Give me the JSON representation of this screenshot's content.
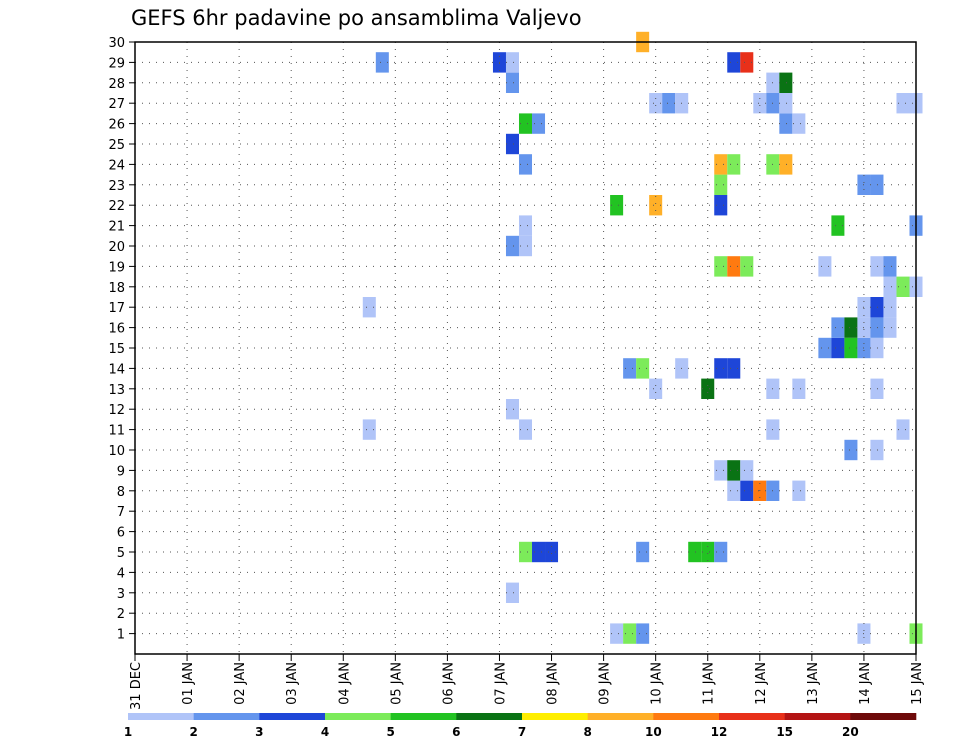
{
  "chart_data": {
    "type": "heatmap",
    "title": "GEFS 6hr padavine po ansamblima Valjevo",
    "y_ticks": [
      1,
      2,
      3,
      4,
      5,
      6,
      7,
      8,
      9,
      10,
      11,
      12,
      13,
      14,
      15,
      16,
      17,
      18,
      19,
      20,
      21,
      22,
      23,
      24,
      25,
      26,
      27,
      28,
      29,
      30
    ],
    "y_range": [
      0,
      30
    ],
    "x_ticks": [
      "31 DEC",
      "01 JAN",
      "02 JAN",
      "03 JAN",
      "04 JAN",
      "05 JAN",
      "06 JAN",
      "07 JAN",
      "08 JAN",
      "09 JAN",
      "10 JAN",
      "11 JAN",
      "12 JAN",
      "13 JAN",
      "14 JAN",
      "15 JAN"
    ],
    "x_range": [
      0,
      15
    ],
    "x_unit": "days from 31 DEC 00Z, 6-hour steps",
    "grid": true,
    "colorbar": {
      "labels": [
        "1",
        "2",
        "3",
        "4",
        "5",
        "6",
        "7",
        "8",
        "10",
        "12",
        "15",
        "20"
      ],
      "colors": [
        "#b0c4f8",
        "#6495ed",
        "#1e46d8",
        "#7ceb5a",
        "#22c322",
        "#0a7314",
        "#ffee00",
        "#ffb028",
        "#ff7a10",
        "#e8301a",
        "#b41414",
        "#6e0a0a"
      ]
    },
    "cells": [
      {
        "x": 9.25,
        "y": 1,
        "c": 0
      },
      {
        "x": 9.5,
        "y": 1,
        "c": 3
      },
      {
        "x": 9.75,
        "y": 1,
        "c": 1
      },
      {
        "x": 14.0,
        "y": 1,
        "c": 0
      },
      {
        "x": 15.0,
        "y": 1,
        "c": 3
      },
      {
        "x": 7.25,
        "y": 3,
        "c": 0
      },
      {
        "x": 7.5,
        "y": 5,
        "c": 3
      },
      {
        "x": 7.75,
        "y": 5,
        "c": 2
      },
      {
        "x": 8.0,
        "y": 5,
        "c": 2
      },
      {
        "x": 9.75,
        "y": 5,
        "c": 1
      },
      {
        "x": 10.75,
        "y": 5,
        "c": 4
      },
      {
        "x": 11.0,
        "y": 5,
        "c": 4
      },
      {
        "x": 11.25,
        "y": 5,
        "c": 1
      },
      {
        "x": 11.5,
        "y": 8,
        "c": 0
      },
      {
        "x": 11.75,
        "y": 8,
        "c": 2
      },
      {
        "x": 12.0,
        "y": 8,
        "c": 8
      },
      {
        "x": 12.25,
        "y": 8,
        "c": 1
      },
      {
        "x": 12.75,
        "y": 8,
        "c": 0
      },
      {
        "x": 11.25,
        "y": 9,
        "c": 0
      },
      {
        "x": 11.5,
        "y": 9,
        "c": 5
      },
      {
        "x": 11.75,
        "y": 9,
        "c": 0
      },
      {
        "x": 13.75,
        "y": 10,
        "c": 1
      },
      {
        "x": 14.25,
        "y": 10,
        "c": 0
      },
      {
        "x": 4.5,
        "y": 11,
        "c": 0
      },
      {
        "x": 7.5,
        "y": 11,
        "c": 0
      },
      {
        "x": 12.25,
        "y": 11,
        "c": 0
      },
      {
        "x": 14.75,
        "y": 11,
        "c": 0
      },
      {
        "x": 7.25,
        "y": 12,
        "c": 0
      },
      {
        "x": 10.0,
        "y": 13,
        "c": 0
      },
      {
        "x": 11.0,
        "y": 13,
        "c": 5
      },
      {
        "x": 12.25,
        "y": 13,
        "c": 0
      },
      {
        "x": 12.75,
        "y": 13,
        "c": 0
      },
      {
        "x": 14.25,
        "y": 13,
        "c": 0
      },
      {
        "x": 9.5,
        "y": 14,
        "c": 1
      },
      {
        "x": 9.75,
        "y": 14,
        "c": 3
      },
      {
        "x": 10.5,
        "y": 14,
        "c": 0
      },
      {
        "x": 11.25,
        "y": 14,
        "c": 2
      },
      {
        "x": 11.5,
        "y": 14,
        "c": 2
      },
      {
        "x": 13.25,
        "y": 15,
        "c": 1
      },
      {
        "x": 13.5,
        "y": 15,
        "c": 2
      },
      {
        "x": 13.75,
        "y": 15,
        "c": 4
      },
      {
        "x": 14.0,
        "y": 15,
        "c": 1
      },
      {
        "x": 14.25,
        "y": 15,
        "c": 0
      },
      {
        "x": 13.5,
        "y": 16,
        "c": 1
      },
      {
        "x": 13.75,
        "y": 16,
        "c": 5
      },
      {
        "x": 14.0,
        "y": 16,
        "c": 0
      },
      {
        "x": 14.25,
        "y": 16,
        "c": 1
      },
      {
        "x": 14.5,
        "y": 16,
        "c": 0
      },
      {
        "x": 4.5,
        "y": 17,
        "c": 0
      },
      {
        "x": 14.0,
        "y": 17,
        "c": 0
      },
      {
        "x": 14.25,
        "y": 17,
        "c": 2
      },
      {
        "x": 14.5,
        "y": 17,
        "c": 0
      },
      {
        "x": 14.5,
        "y": 18,
        "c": 0
      },
      {
        "x": 14.75,
        "y": 18,
        "c": 3
      },
      {
        "x": 15.0,
        "y": 18,
        "c": 0
      },
      {
        "x": 11.25,
        "y": 19,
        "c": 3
      },
      {
        "x": 11.5,
        "y": 19,
        "c": 8
      },
      {
        "x": 11.75,
        "y": 19,
        "c": 3
      },
      {
        "x": 13.25,
        "y": 19,
        "c": 0
      },
      {
        "x": 14.25,
        "y": 19,
        "c": 0
      },
      {
        "x": 14.5,
        "y": 19,
        "c": 1
      },
      {
        "x": 7.25,
        "y": 20,
        "c": 1
      },
      {
        "x": 7.5,
        "y": 20,
        "c": 0
      },
      {
        "x": 7.5,
        "y": 21,
        "c": 0
      },
      {
        "x": 13.5,
        "y": 21,
        "c": 4
      },
      {
        "x": 15.0,
        "y": 21,
        "c": 1
      },
      {
        "x": 9.25,
        "y": 22,
        "c": 4
      },
      {
        "x": 10.0,
        "y": 22,
        "c": 7
      },
      {
        "x": 11.25,
        "y": 22,
        "c": 2
      },
      {
        "x": 11.25,
        "y": 23,
        "c": 3
      },
      {
        "x": 14.0,
        "y": 23,
        "c": 1
      },
      {
        "x": 14.25,
        "y": 23,
        "c": 1
      },
      {
        "x": 7.5,
        "y": 24,
        "c": 1
      },
      {
        "x": 11.25,
        "y": 24,
        "c": 7
      },
      {
        "x": 11.5,
        "y": 24,
        "c": 3
      },
      {
        "x": 12.25,
        "y": 24,
        "c": 3
      },
      {
        "x": 12.5,
        "y": 24,
        "c": 7
      },
      {
        "x": 7.25,
        "y": 25,
        "c": 2
      },
      {
        "x": 7.5,
        "y": 26,
        "c": 4
      },
      {
        "x": 7.75,
        "y": 26,
        "c": 1
      },
      {
        "x": 12.5,
        "y": 26,
        "c": 1
      },
      {
        "x": 12.75,
        "y": 26,
        "c": 0
      },
      {
        "x": 10.0,
        "y": 27,
        "c": 0
      },
      {
        "x": 10.25,
        "y": 27,
        "c": 1
      },
      {
        "x": 10.5,
        "y": 27,
        "c": 0
      },
      {
        "x": 12.0,
        "y": 27,
        "c": 0
      },
      {
        "x": 12.25,
        "y": 27,
        "c": 1
      },
      {
        "x": 12.5,
        "y": 27,
        "c": 0
      },
      {
        "x": 14.75,
        "y": 27,
        "c": 0
      },
      {
        "x": 15.0,
        "y": 27,
        "c": 0
      },
      {
        "x": 7.25,
        "y": 28,
        "c": 1
      },
      {
        "x": 12.25,
        "y": 28,
        "c": 0
      },
      {
        "x": 12.5,
        "y": 28,
        "c": 5
      },
      {
        "x": 4.75,
        "y": 29,
        "c": 1
      },
      {
        "x": 7.0,
        "y": 29,
        "c": 2
      },
      {
        "x": 7.25,
        "y": 29,
        "c": 0
      },
      {
        "x": 11.5,
        "y": 29,
        "c": 2
      },
      {
        "x": 11.75,
        "y": 29,
        "c": 9
      },
      {
        "x": 9.75,
        "y": 30,
        "c": 7
      }
    ]
  }
}
